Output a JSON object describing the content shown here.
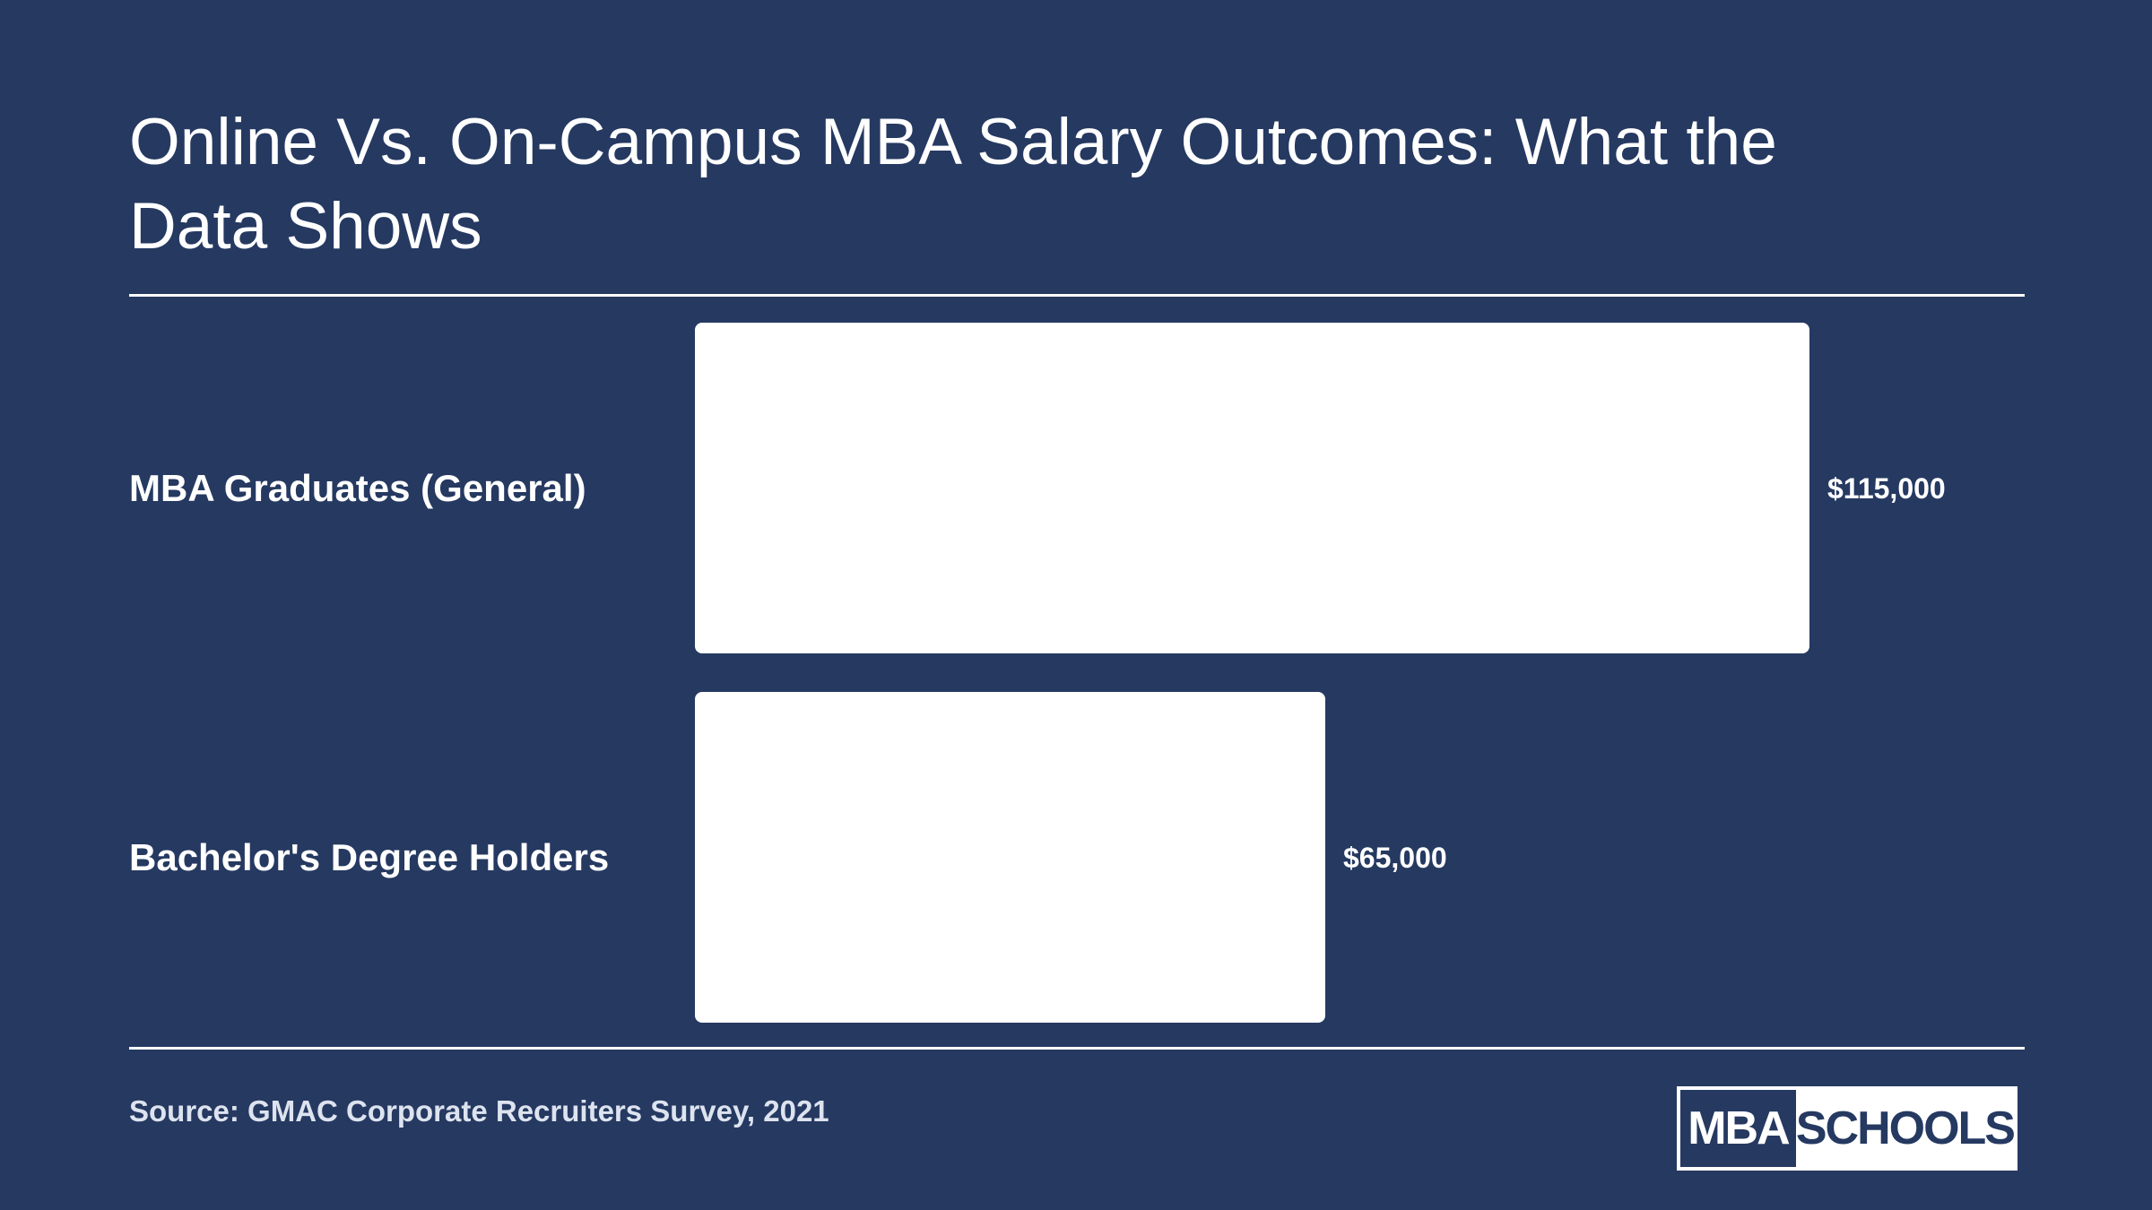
{
  "title": "Online Vs. On-Campus MBA Salary Outcomes: What the Data Shows",
  "source": "Source: GMAC Corporate Recruiters Survey, 2021",
  "logo": {
    "left": "MBA",
    "right": "SCHOOLS"
  },
  "colors": {
    "background": "#253961",
    "bar": "#ffffff",
    "text": "#ffffff"
  },
  "chart_data": {
    "type": "bar",
    "orientation": "horizontal",
    "categories": [
      "MBA Graduates (General)",
      "Bachelor's Degree Holders"
    ],
    "values": [
      115000,
      65000
    ],
    "value_labels": [
      "$115,000",
      "$65,000"
    ],
    "title": "Online Vs. On-Campus MBA Salary Outcomes: What the Data Shows",
    "xlim": [
      0,
      115000
    ],
    "grid": false
  }
}
